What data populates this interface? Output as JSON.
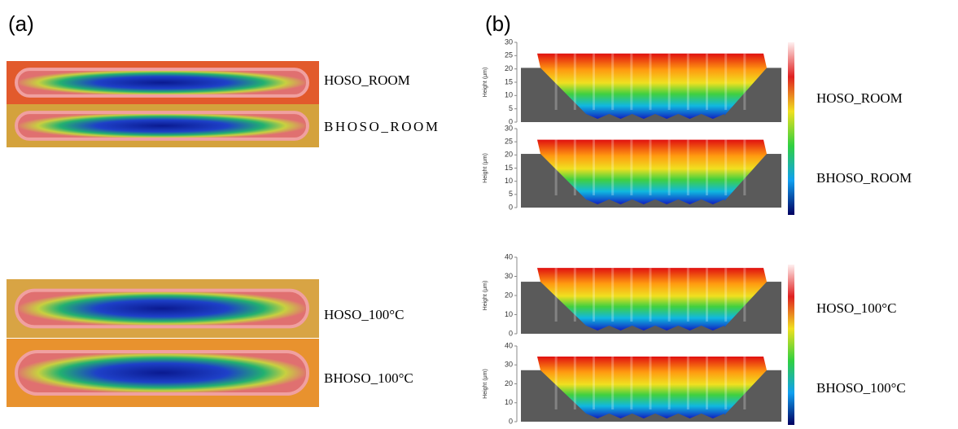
{
  "panel_a": {
    "label": "(a)",
    "samples": [
      "HOSO_ROOM",
      "BHOSO_ROOM",
      "HOSO_100°C",
      "BHOSO_100°C"
    ]
  },
  "panel_b": {
    "label": "(b)",
    "samples": [
      "HOSO_ROOM",
      "BHOSO_ROOM",
      "HOSO_100°C",
      "BHOSO_100°C"
    ],
    "plots": [
      {
        "ylabel": "Height (μm)",
        "yticks": [
          0,
          5,
          10,
          15,
          20,
          25,
          30
        ]
      },
      {
        "ylabel": "Height (μm)",
        "yticks": [
          0,
          5,
          10,
          15,
          20,
          25,
          30
        ]
      },
      {
        "ylabel": "Height (μm)",
        "yticks": [
          0,
          10,
          20,
          30,
          40
        ]
      },
      {
        "ylabel": "Height (μm)",
        "yticks": [
          0,
          10,
          20,
          30,
          40
        ]
      }
    ]
  }
}
